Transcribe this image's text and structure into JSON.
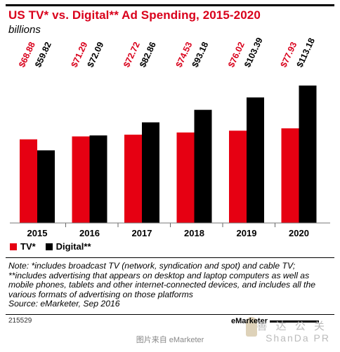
{
  "chart_data": {
    "type": "bar",
    "title": "US TV* vs. Digital** Ad Spending, 2015-2020",
    "subtitle": "billions",
    "categories": [
      "2015",
      "2016",
      "2017",
      "2018",
      "2019",
      "2020"
    ],
    "series": [
      {
        "name": "TV*",
        "color": "#e60012",
        "values": [
          68.88,
          71.29,
          72.72,
          74.53,
          76.02,
          77.93
        ],
        "labels": [
          "$68.88",
          "$71.29",
          "$72.72",
          "$74.53",
          "$76.02",
          "$77.93"
        ]
      },
      {
        "name": "Digital**",
        "color": "#000000",
        "values": [
          59.82,
          72.09,
          82.86,
          93.18,
          103.39,
          113.18
        ],
        "labels": [
          "$59.82",
          "$72.09",
          "$82.86",
          "$93.18",
          "$103.39",
          "$113.18"
        ]
      }
    ],
    "ylim": [
      0,
      113.18
    ],
    "grid": false,
    "legend_position": "bottom-left"
  },
  "note": "Note: *includes broadcast TV (network, syndication and spot) and cable TV; **includes advertising that appears on desktop and laptop computers as well as mobile phones, tablets and other internet-connected devices, and includes all the various formats of advertising on those platforms",
  "source": "Source: eMarketer, Sep 2016",
  "chart_id": "215529",
  "brand": "eMarketer",
  "image_caption": "图片来自 eMarketer",
  "watermark_cn": "善 达 公 关",
  "watermark_en": "ShanDa PR"
}
